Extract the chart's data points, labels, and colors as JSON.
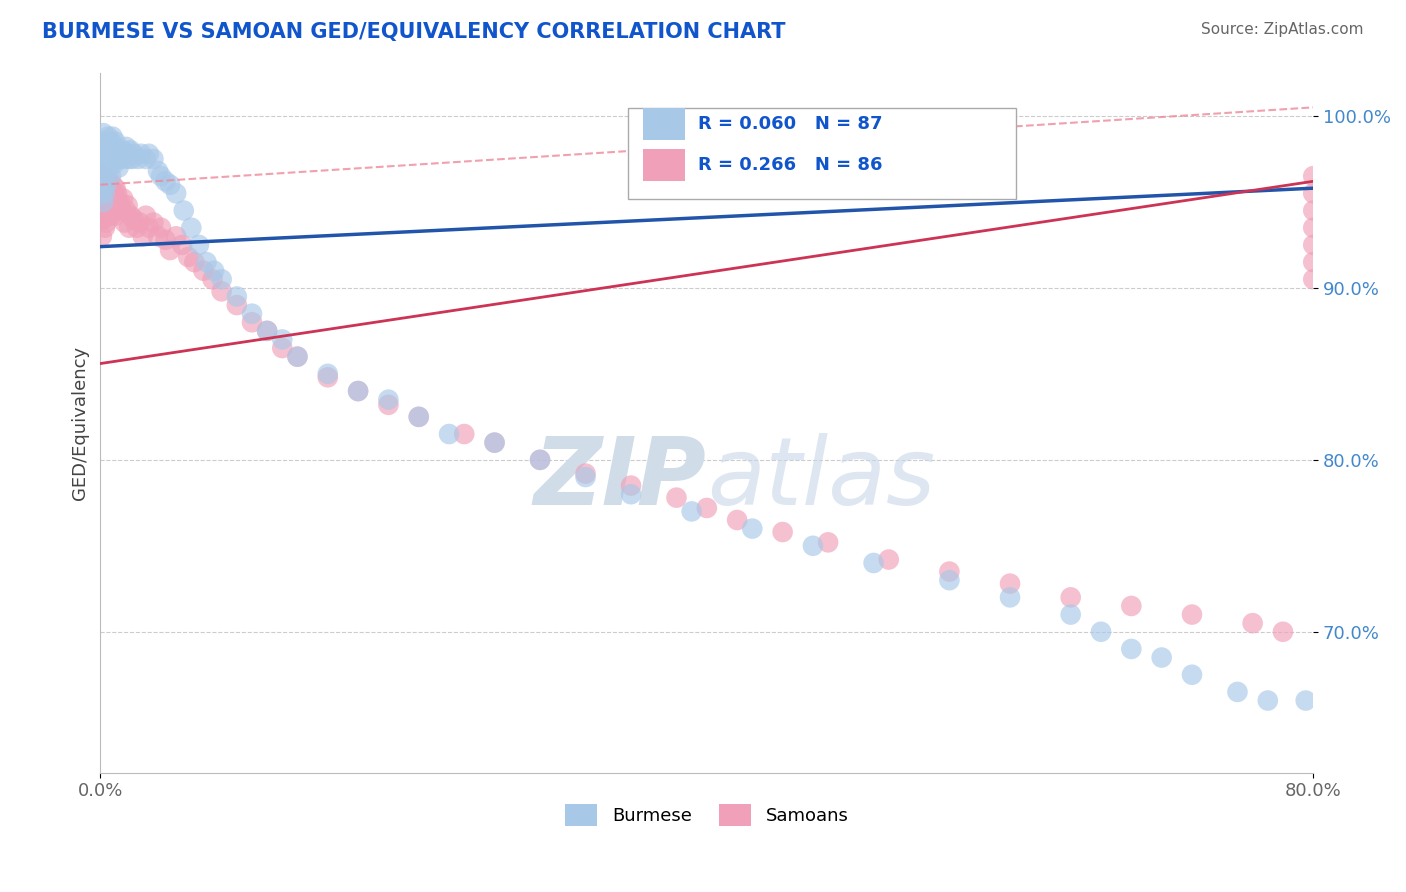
{
  "title": "BURMESE VS SAMOAN GED/EQUIVALENCY CORRELATION CHART",
  "source": "Source: ZipAtlas.com",
  "ylabel_label": "GED/Equivalency",
  "x_min": 0.0,
  "x_max": 0.8,
  "y_min": 0.618,
  "y_max": 1.025,
  "burmese_color": "#a8c8e8",
  "samoan_color": "#f0a0b8",
  "burmese_line_color": "#2255aa",
  "samoan_line_color": "#cc3355",
  "dashed_line_color": "#ee8899",
  "burmese_R": 0.06,
  "burmese_N": 87,
  "samoan_R": 0.266,
  "samoan_N": 86,
  "legend_R_color": "#1155cc",
  "title_color": "#1155cc",
  "watermark_color": "#d0dde8",
  "burmese_line_y0": 0.924,
  "burmese_line_y1": 0.958,
  "samoan_line_y0": 0.856,
  "samoan_line_y1": 0.962,
  "dashed_line_y0": 0.96,
  "dashed_line_y1": 1.005,
  "burmese_x": [
    0.001,
    0.001,
    0.001,
    0.001,
    0.002,
    0.002,
    0.002,
    0.002,
    0.002,
    0.003,
    0.003,
    0.003,
    0.003,
    0.004,
    0.004,
    0.004,
    0.005,
    0.005,
    0.005,
    0.006,
    0.006,
    0.007,
    0.007,
    0.007,
    0.008,
    0.008,
    0.009,
    0.009,
    0.01,
    0.01,
    0.011,
    0.012,
    0.012,
    0.013,
    0.014,
    0.015,
    0.016,
    0.017,
    0.018,
    0.019,
    0.02,
    0.021,
    0.022,
    0.025,
    0.027,
    0.03,
    0.032,
    0.035,
    0.038,
    0.04,
    0.043,
    0.046,
    0.05,
    0.055,
    0.06,
    0.065,
    0.07,
    0.075,
    0.08,
    0.09,
    0.1,
    0.11,
    0.12,
    0.13,
    0.15,
    0.17,
    0.19,
    0.21,
    0.23,
    0.26,
    0.29,
    0.32,
    0.35,
    0.39,
    0.43,
    0.47,
    0.51,
    0.56,
    0.6,
    0.64,
    0.66,
    0.68,
    0.7,
    0.72,
    0.75,
    0.77,
    0.795
  ],
  "burmese_y": [
    0.985,
    0.975,
    0.965,
    0.955,
    0.99,
    0.98,
    0.97,
    0.96,
    0.95,
    0.985,
    0.975,
    0.965,
    0.955,
    0.98,
    0.97,
    0.96,
    0.988,
    0.978,
    0.968,
    0.982,
    0.972,
    0.985,
    0.975,
    0.965,
    0.988,
    0.978,
    0.982,
    0.972,
    0.985,
    0.975,
    0.978,
    0.98,
    0.97,
    0.975,
    0.978,
    0.98,
    0.975,
    0.982,
    0.978,
    0.975,
    0.98,
    0.975,
    0.978,
    0.975,
    0.978,
    0.975,
    0.978,
    0.975,
    0.968,
    0.965,
    0.962,
    0.96,
    0.955,
    0.945,
    0.935,
    0.925,
    0.915,
    0.91,
    0.905,
    0.895,
    0.885,
    0.875,
    0.87,
    0.86,
    0.85,
    0.84,
    0.835,
    0.825,
    0.815,
    0.81,
    0.8,
    0.79,
    0.78,
    0.77,
    0.76,
    0.75,
    0.74,
    0.73,
    0.72,
    0.71,
    0.7,
    0.69,
    0.685,
    0.675,
    0.665,
    0.66,
    0.66
  ],
  "samoan_x": [
    0.001,
    0.001,
    0.001,
    0.001,
    0.002,
    0.002,
    0.002,
    0.003,
    0.003,
    0.003,
    0.004,
    0.004,
    0.004,
    0.005,
    0.005,
    0.006,
    0.006,
    0.007,
    0.007,
    0.008,
    0.008,
    0.009,
    0.01,
    0.01,
    0.011,
    0.012,
    0.013,
    0.014,
    0.015,
    0.016,
    0.017,
    0.018,
    0.019,
    0.02,
    0.022,
    0.024,
    0.026,
    0.028,
    0.03,
    0.032,
    0.035,
    0.038,
    0.04,
    0.043,
    0.046,
    0.05,
    0.054,
    0.058,
    0.062,
    0.068,
    0.074,
    0.08,
    0.09,
    0.1,
    0.11,
    0.12,
    0.13,
    0.15,
    0.17,
    0.19,
    0.21,
    0.24,
    0.26,
    0.29,
    0.32,
    0.35,
    0.38,
    0.4,
    0.42,
    0.45,
    0.48,
    0.52,
    0.56,
    0.6,
    0.64,
    0.68,
    0.72,
    0.76,
    0.78,
    0.8,
    0.8,
    0.8,
    0.8,
    0.8,
    0.8,
    0.8
  ],
  "samoan_y": [
    0.96,
    0.95,
    0.94,
    0.93,
    0.965,
    0.955,
    0.94,
    0.96,
    0.95,
    0.935,
    0.962,
    0.95,
    0.938,
    0.958,
    0.945,
    0.962,
    0.948,
    0.955,
    0.942,
    0.96,
    0.945,
    0.955,
    0.958,
    0.942,
    0.955,
    0.948,
    0.95,
    0.945,
    0.952,
    0.938,
    0.945,
    0.948,
    0.935,
    0.942,
    0.94,
    0.935,
    0.938,
    0.93,
    0.942,
    0.935,
    0.938,
    0.93,
    0.935,
    0.928,
    0.922,
    0.93,
    0.925,
    0.918,
    0.915,
    0.91,
    0.905,
    0.898,
    0.89,
    0.88,
    0.875,
    0.865,
    0.86,
    0.848,
    0.84,
    0.832,
    0.825,
    0.815,
    0.81,
    0.8,
    0.792,
    0.785,
    0.778,
    0.772,
    0.765,
    0.758,
    0.752,
    0.742,
    0.735,
    0.728,
    0.72,
    0.715,
    0.71,
    0.705,
    0.7,
    0.965,
    0.955,
    0.945,
    0.935,
    0.925,
    0.915,
    0.905
  ]
}
